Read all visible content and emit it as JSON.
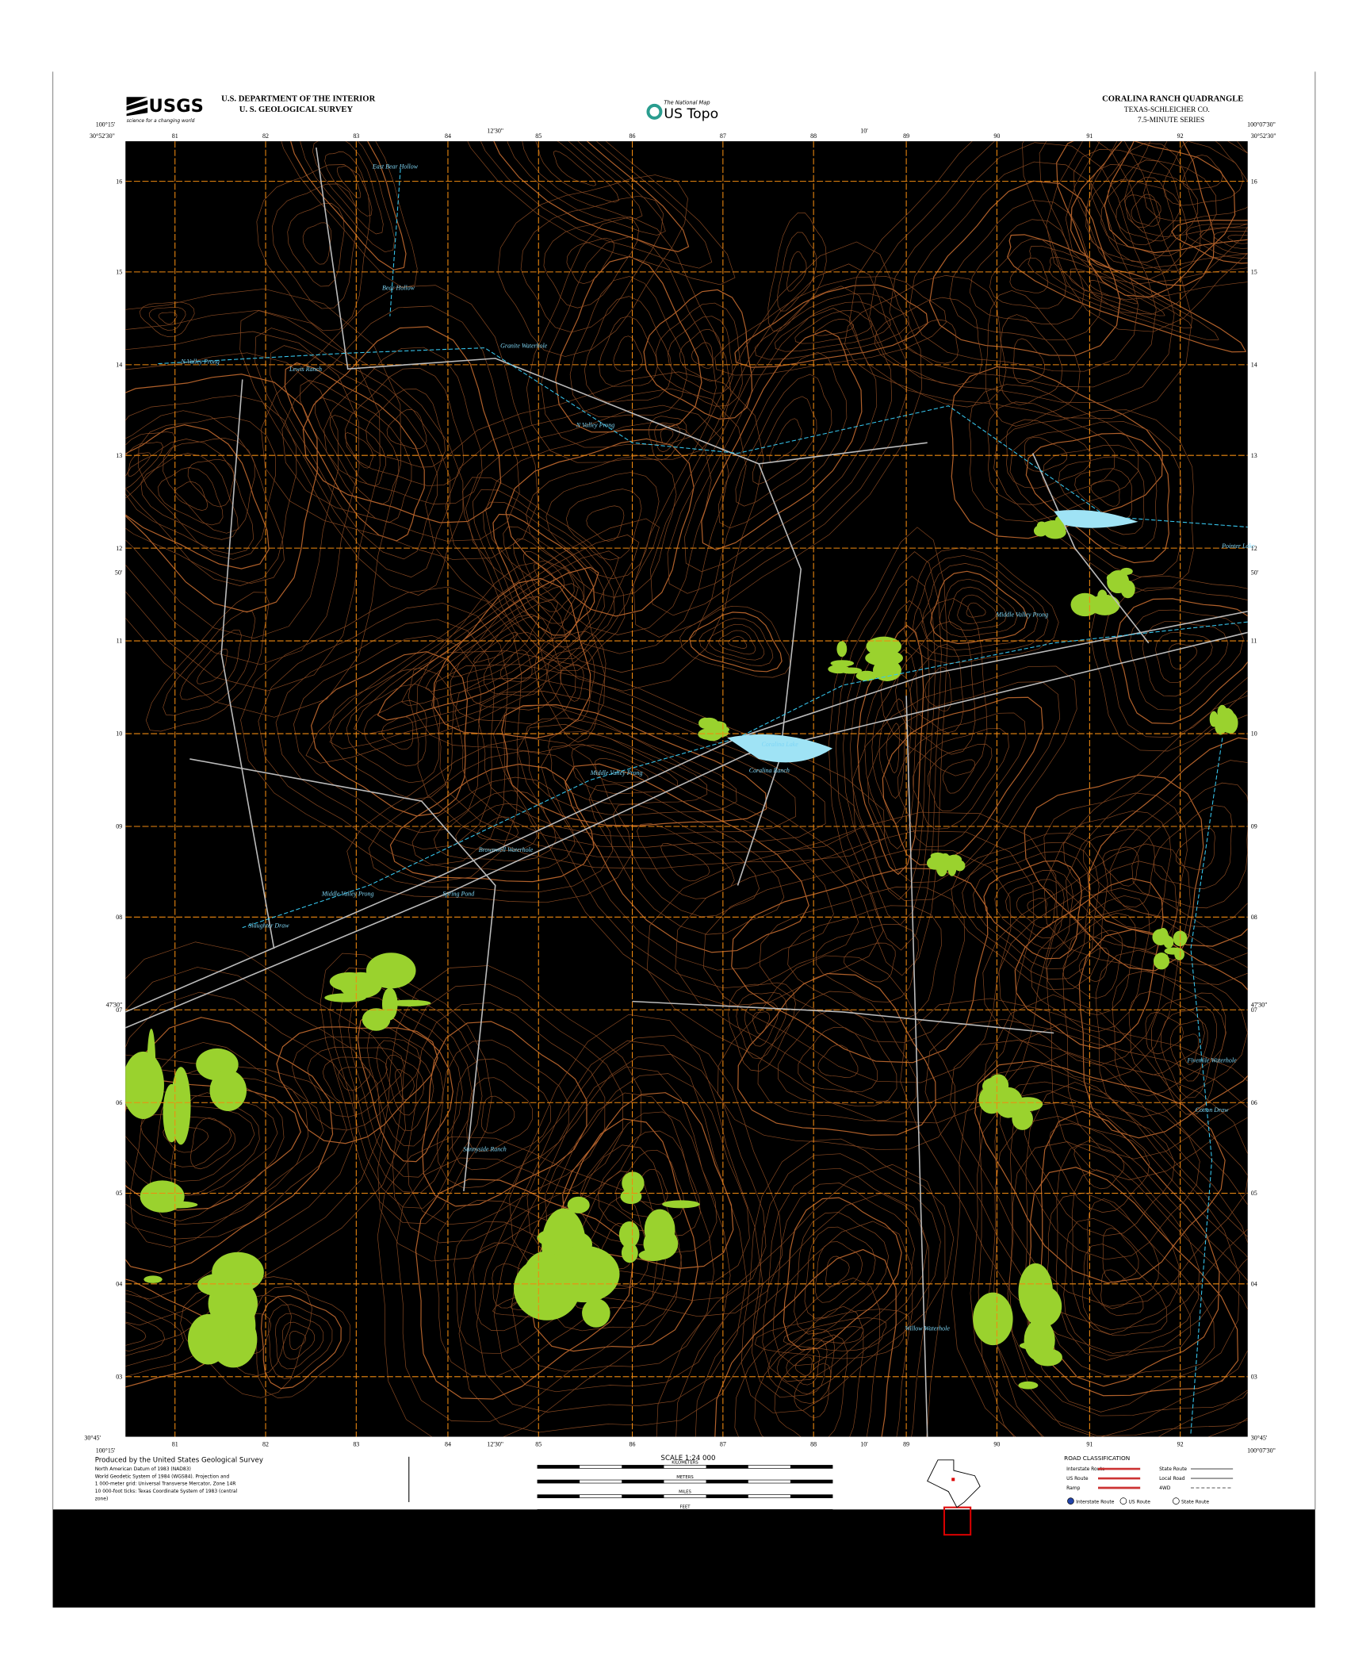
{
  "header": {
    "agency": "USGS",
    "agency_tagline": "science for a changing world",
    "department": "U.S. DEPARTMENT OF THE INTERIOR",
    "survey": "U. S. GEOLOGICAL SURVEY",
    "product_tag": "The National Map",
    "product": "US Topo",
    "quad_title": "CORALINA RANCH QUADRANGLE",
    "state_county": "TEXAS-SCHLEICHER CO.",
    "series": "7.5-MINUTE SERIES"
  },
  "map": {
    "corners": {
      "nw_lon": "100°15'",
      "nw_lat": "30°52'30\"",
      "ne_lon": "100°07'30\"",
      "ne_lat": "30°52'30\"",
      "sw_lon": "100°15'",
      "sw_lat": "30°45'",
      "se_lon": "100°07'30\"",
      "se_lat": "30°45'"
    },
    "mid_lon": [
      "12'30\"",
      "10'"
    ],
    "mid_lat": [
      "50'",
      "47'30\""
    ],
    "easting_labels": [
      "81",
      "82",
      "83",
      "84",
      "85",
      "86",
      "87",
      "88",
      "89",
      "90",
      "91",
      "92"
    ],
    "northing_labels": [
      "16",
      "15",
      "14",
      "13",
      "12",
      "11",
      "10",
      "09",
      "08",
      "07",
      "06",
      "05",
      "04",
      "03"
    ],
    "place_names": [
      "East Bear Hollow",
      "Bear Hollow",
      "N Valley Prong",
      "Granite Waterhole",
      "Lewis Ranch",
      "N Valley Prong",
      "Middle Valley Prong",
      "Coralina Lake",
      "Coralina Ranch",
      "Middle Valley Prong",
      "Brownwell Waterhole",
      "Spring Pond",
      "Middle Valley Prong",
      "Slaughter Draw",
      "Fivemile Waterhole",
      "Cotton Draw",
      "Sunnyside Ranch",
      "Willow Waterhole",
      "Pointer Lake"
    ]
  },
  "footer": {
    "produced_by": "Produced by the United States Geological Survey",
    "datum_notes": [
      "North American Datum of 1983 (NAD83)",
      "World Geodetic System of 1984 (WGS84). Projection and",
      "1 000-meter grid: Universal Transverse Mercator, Zone 14R",
      "10 000-foot ticks: Texas Coordinate System of 1983 (central",
      "zone)"
    ],
    "scale": "SCALE 1:24 000",
    "scale_units": [
      "KILOMETERS",
      "METERS",
      "MILES",
      "FEET"
    ],
    "road_title": "ROAD CLASSIFICATION",
    "road_classes": [
      "Interstate Route",
      "US Route",
      "Ramp",
      "State Route",
      "Local Road",
      "4WD"
    ],
    "shields": [
      "Interstate Route",
      "US Route",
      "State Route"
    ]
  }
}
